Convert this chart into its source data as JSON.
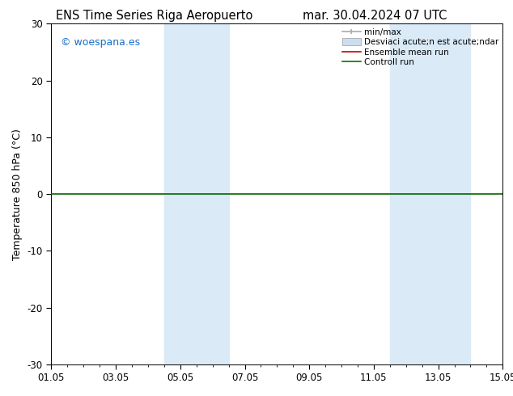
{
  "title_left": "ENS Time Series Riga Aeropuerto",
  "title_right": "mar. 30.04.2024 07 UTC",
  "ylabel": "Temperature 850 hPa (°C)",
  "ylim": [
    -30,
    30
  ],
  "yticks": [
    -30,
    -20,
    -10,
    0,
    10,
    20,
    30
  ],
  "xtick_labels": [
    "01.05",
    "03.05",
    "05.05",
    "07.05",
    "09.05",
    "11.05",
    "13.05",
    "15.05"
  ],
  "xtick_positions": [
    0,
    2,
    4,
    6,
    8,
    10,
    12,
    14
  ],
  "shaded_regions": [
    {
      "start": 3.5,
      "end": 5.5,
      "color": "#daeaf7"
    },
    {
      "start": 10.5,
      "end": 13.0,
      "color": "#daeaf7"
    }
  ],
  "watermark": "© woespana.es",
  "watermark_color": "#1a6fc4",
  "legend_labels": [
    "min/max",
    "Desviaci acute;n est acute;ndar",
    "Ensemble mean run",
    "Controll run"
  ],
  "legend_colors": [
    "#aaaaaa",
    "#ccddef",
    "#cc0000",
    "#007700"
  ],
  "zero_line_color": "#006600",
  "title_fontsize": 10.5,
  "tick_fontsize": 8.5,
  "label_fontsize": 9,
  "bg_color": "#ffffff"
}
